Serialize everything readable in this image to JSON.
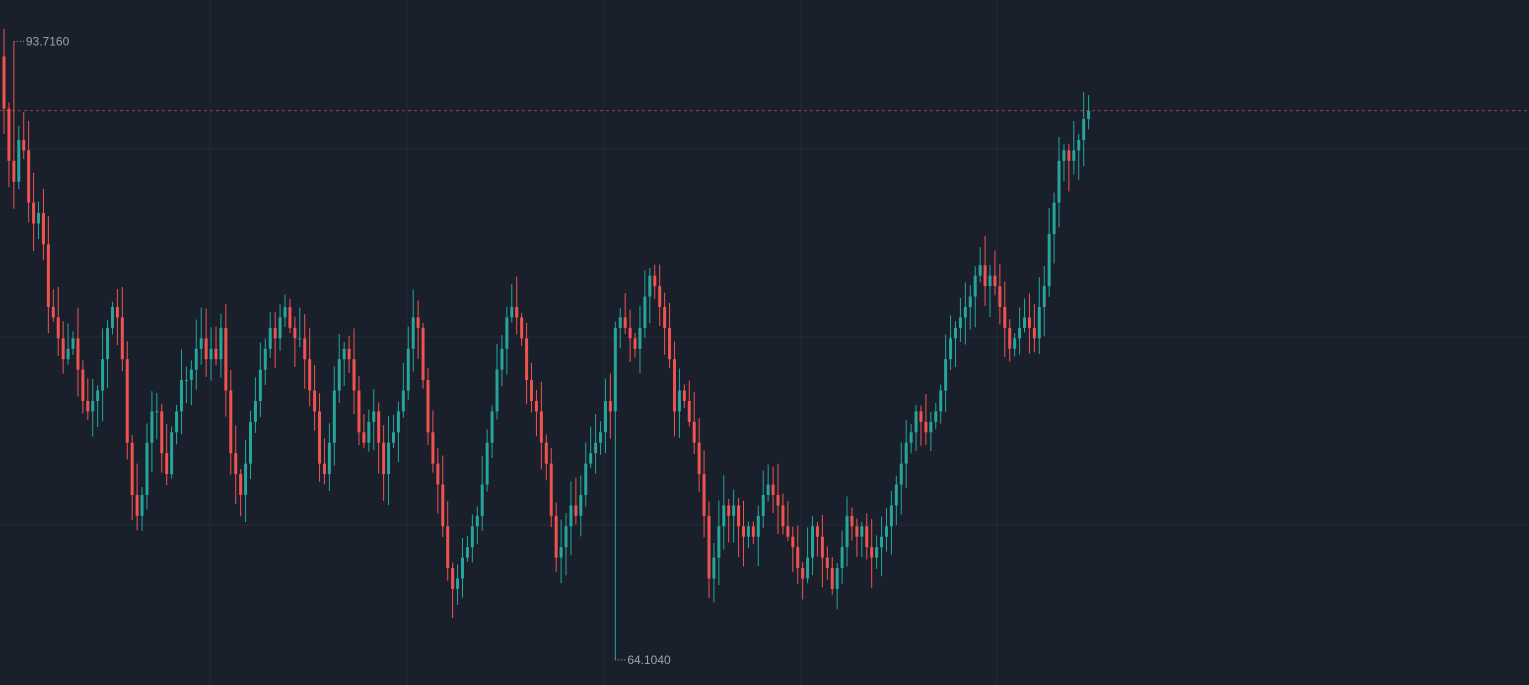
{
  "chart_data": {
    "type": "candlestick",
    "ylim": [
      62.9,
      95.7
    ],
    "grid": true,
    "colors": {
      "background": "#1a1f2c",
      "grid": "#232b37",
      "up": "#26a69a",
      "down": "#ef5350",
      "price_line": "#ef5350",
      "label": "#9aa3b2"
    },
    "high_label": "93.7160",
    "low_label": "64.1040",
    "high": {
      "index": 2,
      "value": 93.716
    },
    "low": {
      "index": 124,
      "value": 64.104
    },
    "last_price": 90.4,
    "start_close": 93.0,
    "closes": [
      90.5,
      88.0,
      87.0,
      89.0,
      88.5,
      86.0,
      85.0,
      85.5,
      84.0,
      81.0,
      80.5,
      79.5,
      78.5,
      79.0,
      79.5,
      78.0,
      76.5,
      76.0,
      76.5,
      77.0,
      78.5,
      80.0,
      81.0,
      80.5,
      78.5,
      74.5,
      72.0,
      71.0,
      72.0,
      74.5,
      76.0,
      76.0,
      74.0,
      73.0,
      75.0,
      76.0,
      77.5,
      77.5,
      78.0,
      79.0,
      79.5,
      78.5,
      79.0,
      78.5,
      80.0,
      77.0,
      74.0,
      73.0,
      72.0,
      73.5,
      75.5,
      76.5,
      78.0,
      79.0,
      80.0,
      79.5,
      80.5,
      81.0,
      80.0,
      79.5,
      79.5,
      78.5,
      77.0,
      76.0,
      73.5,
      73.0,
      74.5,
      77.0,
      78.5,
      79.0,
      78.5,
      77.0,
      75.0,
      74.5,
      75.5,
      76.0,
      74.5,
      73.0,
      74.5,
      75.0,
      76.0,
      77.0,
      79.0,
      80.5,
      80.0,
      77.5,
      75.0,
      73.5,
      72.5,
      70.5,
      68.5,
      67.5,
      68.0,
      69.0,
      69.5,
      70.5,
      71.0,
      72.5,
      74.5,
      76.0,
      78.0,
      79.0,
      80.5,
      81.0,
      80.5,
      79.5,
      77.5,
      76.5,
      76.0,
      74.5,
      73.5,
      71.0,
      69.0,
      69.5,
      70.5,
      71.5,
      71.0,
      72.0,
      73.5,
      74.0,
      74.5,
      75.0,
      76.5,
      76.0,
      80.0,
      80.5,
      80.0,
      79.5,
      79.0,
      80.0,
      81.5,
      82.5,
      82.0,
      81.0,
      80.0,
      78.5,
      76.0,
      77.0,
      76.5,
      75.5,
      74.5,
      73.0,
      71.0,
      68.0,
      69.0,
      70.5,
      71.5,
      71.0,
      71.5,
      70.5,
      70.0,
      70.5,
      70.0,
      71.0,
      72.0,
      72.5,
      72.0,
      71.5,
      70.5,
      70.0,
      69.5,
      68.5,
      68.0,
      69.0,
      70.5,
      70.0,
      69.0,
      68.5,
      67.5,
      68.5,
      69.5,
      71.0,
      70.5,
      70.0,
      70.5,
      69.5,
      69.0,
      69.5,
      70.0,
      70.5,
      71.5,
      72.5,
      73.5,
      74.5,
      75.0,
      76.0,
      75.5,
      75.0,
      75.5,
      76.0,
      77.0,
      78.5,
      79.5,
      80.0,
      80.5,
      81.0,
      81.5,
      82.5,
      83.0,
      82.0,
      82.5,
      82.0,
      81.0,
      80.0,
      79.0,
      79.5,
      80.0,
      80.5,
      80.0,
      79.5,
      81.0,
      82.0,
      84.5,
      86.0,
      88.0,
      88.5,
      88.0,
      88.5,
      89.0,
      90.0,
      90.4
    ]
  }
}
